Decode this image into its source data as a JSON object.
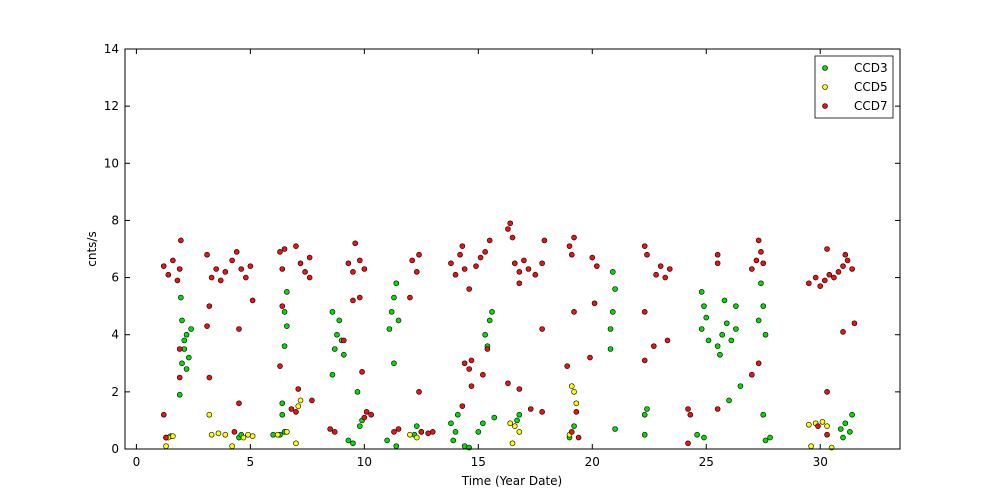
{
  "chart_data": {
    "type": "scatter",
    "x_label": "Time (Year Date)",
    "y_label": "cnts/s",
    "xlim": [
      -0.5,
      33.5
    ],
    "xticks": [
      0,
      5,
      10,
      15,
      20,
      25,
      30
    ],
    "ylim": [
      0,
      14
    ],
    "yticks": [
      0,
      2,
      4,
      6,
      8,
      10,
      12,
      14
    ],
    "legend": "upper right",
    "series": [
      {
        "name": "CCD3",
        "color": "#00dd00",
        "x": [
          1.3,
          1.5,
          1.9,
          2.0,
          2.1,
          2.2,
          2.0,
          1.95,
          2.3,
          2.4,
          2.2,
          2.1,
          4.5,
          4.6,
          6.0,
          6.3,
          6.5,
          6.5,
          6.6,
          6.5,
          6.6,
          6.4,
          6.4,
          8.7,
          8.8,
          8.9,
          9.0,
          9.1,
          8.6,
          8.6,
          9.3,
          9.5,
          9.8,
          9.9,
          9.7,
          11.1,
          11.2,
          11.3,
          11.4,
          11.5,
          11.3,
          11.0,
          11.4,
          12.2,
          12.5,
          12.3,
          13.8,
          14.0,
          14.1,
          13.9,
          14.4,
          14.6,
          15.0,
          15.2,
          15.3,
          15.5,
          15.6,
          15.4,
          15.7,
          16.7,
          16.8,
          19.2,
          19.0,
          20.8,
          20.9,
          21.0,
          20.9,
          21.0,
          20.8,
          22.3,
          22.4,
          22.3,
          24.8,
          25.0,
          24.9,
          25.1,
          24.8,
          24.6,
          24.9,
          25.5,
          25.7,
          25.9,
          26.1,
          26.3,
          25.6,
          25.8,
          26.3,
          26.0,
          26.5,
          27.3,
          27.5,
          27.6,
          27.4,
          27.5,
          27.6,
          27.8,
          30.9,
          31.1,
          31.3,
          31.4,
          31.0
        ],
        "values": [
          0.4,
          0.45,
          1.9,
          3.0,
          3.5,
          4.0,
          4.5,
          5.3,
          3.2,
          4.2,
          2.8,
          3.8,
          0.4,
          0.5,
          0.5,
          0.5,
          0.6,
          3.6,
          4.3,
          4.8,
          5.5,
          1.6,
          1.2,
          3.5,
          4.0,
          4.5,
          3.8,
          3.3,
          4.8,
          2.6,
          0.3,
          0.2,
          0.8,
          1.0,
          2.0,
          4.2,
          4.8,
          5.3,
          5.8,
          4.5,
          3.0,
          0.3,
          0.1,
          0.5,
          0.6,
          0.8,
          0.9,
          0.6,
          1.2,
          0.3,
          0.1,
          0.05,
          0.6,
          0.9,
          4.0,
          4.5,
          4.8,
          3.6,
          1.1,
          1.0,
          1.2,
          0.8,
          0.4,
          4.2,
          4.8,
          5.6,
          6.2,
          0.7,
          3.5,
          1.2,
          1.4,
          0.5,
          4.2,
          4.6,
          5.0,
          3.8,
          5.5,
          0.5,
          0.4,
          3.6,
          4.0,
          4.4,
          3.8,
          4.2,
          3.3,
          5.2,
          5.0,
          1.7,
          2.2,
          4.5,
          5.0,
          4.0,
          5.8,
          1.2,
          0.3,
          0.4,
          0.7,
          0.9,
          0.6,
          1.2,
          0.4
        ]
      },
      {
        "name": "CCD5",
        "color": "#ffff00",
        "x": [
          1.4,
          1.6,
          1.3,
          3.2,
          3.3,
          3.6,
          3.9,
          4.2,
          4.7,
          4.9,
          5.1,
          6.2,
          6.6,
          7.1,
          7.2,
          7.0,
          12.0,
          12.3,
          16.4,
          16.6,
          16.8,
          16.5,
          19.1,
          19.2,
          19.3,
          19.0,
          29.5,
          29.8,
          30.1,
          30.3,
          29.6,
          30.5
        ],
        "values": [
          0.4,
          0.45,
          0.1,
          1.2,
          0.5,
          0.55,
          0.5,
          0.1,
          0.4,
          0.5,
          0.45,
          0.5,
          0.6,
          1.5,
          1.7,
          0.2,
          0.5,
          0.4,
          0.9,
          0.8,
          0.6,
          0.2,
          2.2,
          2.0,
          1.6,
          0.5,
          0.85,
          0.9,
          0.95,
          0.8,
          0.1,
          0.05
        ]
      },
      {
        "name": "CCD7",
        "color": "#ee1111",
        "x": [
          1.2,
          1.4,
          1.6,
          1.8,
          1.9,
          1.95,
          1.2,
          1.3,
          1.9,
          1.9,
          3.1,
          3.3,
          3.5,
          3.7,
          3.9,
          3.2,
          3.1,
          3.2,
          4.2,
          4.4,
          4.6,
          4.8,
          5.0,
          5.1,
          4.5,
          4.3,
          4.5,
          6.3,
          6.4,
          6.5,
          6.4,
          6.3,
          6.8,
          7.0,
          7.1,
          7.0,
          7.2,
          7.4,
          7.6,
          7.6,
          7.7,
          8.5,
          8.7,
          9.3,
          9.5,
          9.6,
          9.8,
          10.0,
          9.5,
          9.8,
          9.9,
          10.0,
          10.3,
          10.1,
          9.1,
          11.3,
          11.5,
          12.1,
          12.3,
          12.4,
          12.0,
          12.5,
          12.8,
          13.0,
          12.4,
          13.8,
          14.0,
          14.2,
          14.4,
          14.3,
          14.4,
          14.6,
          14.7,
          14.6,
          14.3,
          14.7,
          14.9,
          15.1,
          15.3,
          15.5,
          15.2,
          15.4,
          16.3,
          16.4,
          16.5,
          16.6,
          16.8,
          17.0,
          17.2,
          17.5,
          17.8,
          17.9,
          16.8,
          17.8,
          16.3,
          16.8,
          17.3,
          17.8,
          19.0,
          19.2,
          19.1,
          19.2,
          19.3,
          19.1,
          19.4,
          18.9,
          20.0,
          20.2,
          20.1,
          19.9,
          22.3,
          22.4,
          22.3,
          22.3,
          22.7,
          22.8,
          23.0,
          23.2,
          23.4,
          23.3,
          24.2,
          24.3,
          24.2,
          25.5,
          25.5,
          25.5,
          27.0,
          27.2,
          27.4,
          27.5,
          27.3,
          27.0,
          27.3,
          29.5,
          29.8,
          30.0,
          30.2,
          30.4,
          30.6,
          30.8,
          31.0,
          31.2,
          31.4,
          31.1,
          30.3,
          30.3,
          30.3,
          31.0,
          31.5,
          29.9
        ],
        "values": [
          6.4,
          6.1,
          6.6,
          5.9,
          6.3,
          7.3,
          1.2,
          0.4,
          3.5,
          2.5,
          6.8,
          6.0,
          6.3,
          5.9,
          6.2,
          5.0,
          4.3,
          2.5,
          6.6,
          6.9,
          6.3,
          6.0,
          6.4,
          5.2,
          4.2,
          0.6,
          1.6,
          6.9,
          6.3,
          7.0,
          5.0,
          2.9,
          1.4,
          1.3,
          2.1,
          7.1,
          6.5,
          6.2,
          6.0,
          6.7,
          1.7,
          0.7,
          0.6,
          6.5,
          6.2,
          7.2,
          6.6,
          6.3,
          5.2,
          5.3,
          2.7,
          1.1,
          1.2,
          1.3,
          3.8,
          0.6,
          0.7,
          6.6,
          6.2,
          6.8,
          5.3,
          0.6,
          0.55,
          0.6,
          2.0,
          6.5,
          6.1,
          6.8,
          6.3,
          7.1,
          3.0,
          2.8,
          3.1,
          5.6,
          1.5,
          2.2,
          6.4,
          6.7,
          6.9,
          7.3,
          2.6,
          3.5,
          7.7,
          7.9,
          7.4,
          6.5,
          6.2,
          6.6,
          6.3,
          6.1,
          6.5,
          7.3,
          5.8,
          4.2,
          2.3,
          2.1,
          1.4,
          1.3,
          7.1,
          7.4,
          6.8,
          4.8,
          1.3,
          0.6,
          0.4,
          2.9,
          6.7,
          6.4,
          5.1,
          3.2,
          7.1,
          6.8,
          4.8,
          3.1,
          3.6,
          6.1,
          6.4,
          6.0,
          6.3,
          3.8,
          1.4,
          1.2,
          0.2,
          6.8,
          6.5,
          1.4,
          6.3,
          6.6,
          6.9,
          6.5,
          7.3,
          2.6,
          3.0,
          5.8,
          6.0,
          5.7,
          5.9,
          6.1,
          6.0,
          6.2,
          6.4,
          6.6,
          6.3,
          6.8,
          7.0,
          2.0,
          0.5,
          4.1,
          4.4,
          0.8
        ]
      }
    ]
  }
}
